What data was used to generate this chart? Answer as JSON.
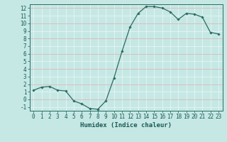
{
  "x": [
    0,
    1,
    2,
    3,
    4,
    5,
    6,
    7,
    8,
    9,
    10,
    11,
    12,
    13,
    14,
    15,
    16,
    17,
    18,
    19,
    20,
    21,
    22,
    23
  ],
  "y": [
    1.2,
    1.6,
    1.7,
    1.2,
    1.1,
    -0.2,
    -0.6,
    -1.2,
    -1.3,
    -0.2,
    2.8,
    6.3,
    9.5,
    11.3,
    12.2,
    12.2,
    12.0,
    11.5,
    10.5,
    11.3,
    11.2,
    10.8,
    8.8,
    8.6
  ],
  "xlabel": "Humidex (Indice chaleur)",
  "ylim": [
    -1.5,
    12.5
  ],
  "xlim": [
    -0.5,
    23.5
  ],
  "yticks": [
    -1,
    0,
    1,
    2,
    3,
    4,
    5,
    6,
    7,
    8,
    9,
    10,
    11,
    12
  ],
  "xticks": [
    0,
    1,
    2,
    3,
    4,
    5,
    6,
    7,
    8,
    9,
    10,
    11,
    12,
    13,
    14,
    15,
    16,
    17,
    18,
    19,
    20,
    21,
    22,
    23
  ],
  "line_color": "#2a6b62",
  "marker_color": "#2a6b62",
  "bg_color": "#c5e8e5",
  "grid_white": "#e8f5f4",
  "grid_pink": "#ddb8b8",
  "axes_color": "#2a6b62",
  "tick_label_color": "#1a5a52",
  "xlabel_color": "#1a5a52",
  "xlabel_fontsize": 6.5,
  "tick_fontsize": 5.5
}
